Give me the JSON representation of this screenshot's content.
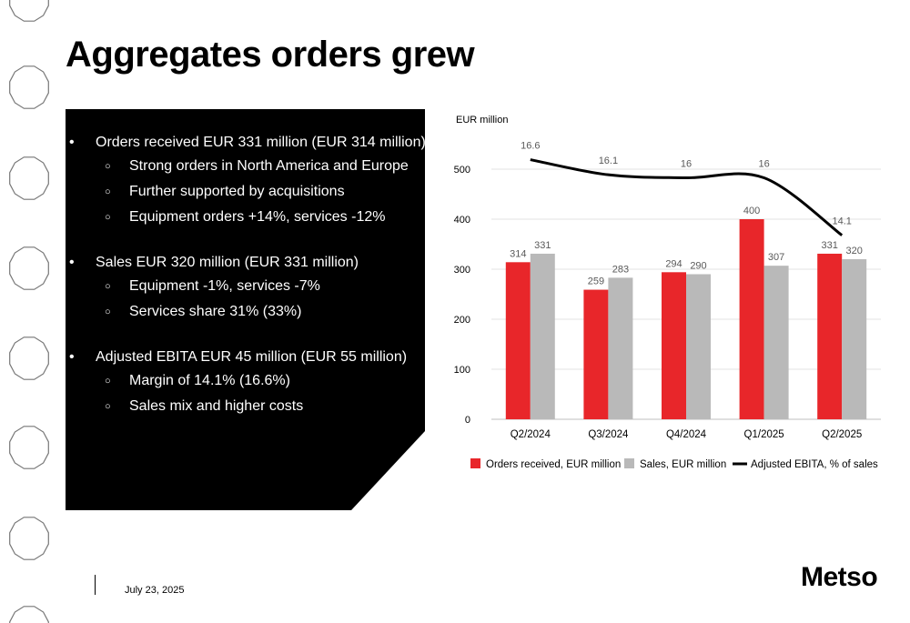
{
  "slide": {
    "title": "Aggregates orders grew",
    "date": "July 23, 2025",
    "logo": "Metso"
  },
  "bullets": [
    {
      "text": "Orders received EUR 331 million (EUR 314 million)",
      "sub": [
        "Strong orders in North America and Europe",
        "Further supported by acquisitions",
        "Equipment orders +14%, services -12%"
      ]
    },
    {
      "text": "Sales EUR 320 million (EUR 331 million)",
      "sub": [
        "Equipment -1%, services -7%",
        "Services share 31% (33%)"
      ]
    },
    {
      "text": "Adjusted EBITA EUR 45 million (EUR 55 million)",
      "sub": [
        "Margin of 14.1% (16.6%)",
        "Sales mix and higher costs"
      ]
    }
  ],
  "chart_data": {
    "type": "bar",
    "unit_label": "EUR million",
    "categories": [
      "Q2/2024",
      "Q3/2024",
      "Q4/2024",
      "Q1/2025",
      "Q2/2025"
    ],
    "ylim": [
      0,
      500
    ],
    "yticks": [
      0,
      100,
      200,
      300,
      400,
      500
    ],
    "grid": true,
    "legend_position": "bottom",
    "series": [
      {
        "name": "Orders received, EUR million",
        "kind": "bar",
        "color": "#e8262a",
        "values": [
          314,
          259,
          294,
          400,
          331
        ]
      },
      {
        "name": "Sales, EUR million",
        "kind": "bar",
        "color": "#b9b9b9",
        "values": [
          331,
          283,
          290,
          307,
          320
        ]
      },
      {
        "name": "Adjusted EBITA, % of sales",
        "kind": "line",
        "color": "#000000",
        "values": [
          16.6,
          16.1,
          16.0,
          16.0,
          14.1
        ]
      }
    ]
  }
}
